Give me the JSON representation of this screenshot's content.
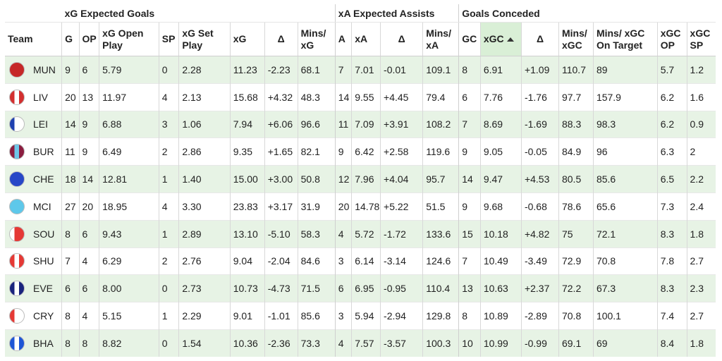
{
  "groups": {
    "xg": "xG Expected Goals",
    "xa": "xA Expected Assists",
    "gc": "Goals Conceded"
  },
  "columns": {
    "team": "Team",
    "g": "G",
    "op": "OP",
    "xg_open": "xG Open Play",
    "sp": "SP",
    "xg_set": "xG Set Play",
    "xg": "xG",
    "delta_g": "Δ",
    "mins_xg": "Mins/ xG",
    "a": "A",
    "xa": "xA",
    "delta_a": "Δ",
    "mins_xa": "Mins/ xA",
    "gc": "GC",
    "xgc": "xGC",
    "delta_gc": "Δ",
    "mins_xgc": "Mins/ xGC",
    "mins_xgc_ot": "Mins/ xGC On Target",
    "xgc_op": "xGC OP",
    "xgc_sp": "xGC SP"
  },
  "sort": {
    "column": "xgc",
    "direction": "ascending",
    "icon": "sort-up-icon"
  },
  "rows": [
    {
      "team": "MUN",
      "crest": "crest-mun-icon",
      "colors": [
        "#c62828",
        "#c62828",
        "#c62828"
      ],
      "g": "9",
      "op": "6",
      "xg_open": "5.79",
      "sp": "0",
      "xg_set": "2.28",
      "xg": "11.23",
      "delta_g": "-2.23",
      "mins_xg": "68.1",
      "a": "7",
      "xa": "7.01",
      "delta_a": "-0.01",
      "mins_xa": "109.1",
      "gc": "8",
      "xgc": "6.91",
      "delta_gc": "+1.09",
      "mins_xgc": "110.7",
      "mins_xgc_ot": "89",
      "xgc_op": "5.7",
      "xgc_sp": "1.2"
    },
    {
      "team": "LIV",
      "crest": "crest-liv-icon",
      "colors": [
        "#d32f2f",
        "#ffffff",
        "#d32f2f"
      ],
      "g": "20",
      "op": "13",
      "xg_open": "11.97",
      "sp": "4",
      "xg_set": "2.13",
      "xg": "15.68",
      "delta_g": "+4.32",
      "mins_xg": "48.3",
      "a": "14",
      "xa": "9.55",
      "delta_a": "+4.45",
      "mins_xa": "79.4",
      "gc": "6",
      "xgc": "7.76",
      "delta_gc": "-1.76",
      "mins_xgc": "97.7",
      "mins_xgc_ot": "157.9",
      "xgc_op": "6.2",
      "xgc_sp": "1.6"
    },
    {
      "team": "LEI",
      "crest": "crest-lei-icon",
      "colors": [
        "#1e40af",
        "#ffffff",
        "#ffffff"
      ],
      "g": "14",
      "op": "9",
      "xg_open": "6.88",
      "sp": "3",
      "xg_set": "1.06",
      "xg": "7.94",
      "delta_g": "+6.06",
      "mins_xg": "96.6",
      "a": "11",
      "xa": "7.09",
      "delta_a": "+3.91",
      "mins_xa": "108.2",
      "gc": "7",
      "xgc": "8.69",
      "delta_gc": "-1.69",
      "mins_xgc": "88.3",
      "mins_xgc_ot": "98.3",
      "xgc_op": "6.2",
      "xgc_sp": "0.9"
    },
    {
      "team": "BUR",
      "crest": "crest-bur-icon",
      "colors": [
        "#8b1d3f",
        "#6ec6e8",
        "#8b1d3f"
      ],
      "g": "11",
      "op": "9",
      "xg_open": "6.49",
      "sp": "2",
      "xg_set": "2.86",
      "xg": "9.35",
      "delta_g": "+1.65",
      "mins_xg": "82.1",
      "a": "9",
      "xa": "6.42",
      "delta_a": "+2.58",
      "mins_xa": "119.6",
      "gc": "9",
      "xgc": "9.05",
      "delta_gc": "-0.05",
      "mins_xgc": "84.9",
      "mins_xgc_ot": "96",
      "xgc_op": "6.3",
      "xgc_sp": "2"
    },
    {
      "team": "CHE",
      "crest": "crest-che-icon",
      "colors": [
        "#2747c7",
        "#2747c7",
        "#2747c7"
      ],
      "g": "18",
      "op": "14",
      "xg_open": "12.81",
      "sp": "1",
      "xg_set": "1.40",
      "xg": "15.00",
      "delta_g": "+3.00",
      "mins_xg": "50.8",
      "a": "12",
      "xa": "7.96",
      "delta_a": "+4.04",
      "mins_xa": "95.7",
      "gc": "14",
      "xgc": "9.47",
      "delta_gc": "+4.53",
      "mins_xgc": "80.5",
      "mins_xgc_ot": "85.6",
      "xgc_op": "6.5",
      "xgc_sp": "2.2"
    },
    {
      "team": "MCI",
      "crest": "crest-mci-icon",
      "colors": [
        "#5ec8ea",
        "#5ec8ea",
        "#5ec8ea"
      ],
      "g": "27",
      "op": "20",
      "xg_open": "18.95",
      "sp": "4",
      "xg_set": "3.30",
      "xg": "23.83",
      "delta_g": "+3.17",
      "mins_xg": "31.9",
      "a": "20",
      "xa": "14.78",
      "delta_a": "+5.22",
      "mins_xa": "51.5",
      "gc": "9",
      "xgc": "9.68",
      "delta_gc": "-0.68",
      "mins_xgc": "78.6",
      "mins_xgc_ot": "65.6",
      "xgc_op": "7.3",
      "xgc_sp": "2.4"
    },
    {
      "team": "SOU",
      "crest": "crest-sou-icon",
      "colors": [
        "#ffffff",
        "#e53935",
        "#e53935"
      ],
      "g": "8",
      "op": "6",
      "xg_open": "9.43",
      "sp": "1",
      "xg_set": "2.89",
      "xg": "13.10",
      "delta_g": "-5.10",
      "mins_xg": "58.3",
      "a": "4",
      "xa": "5.72",
      "delta_a": "-1.72",
      "mins_xa": "133.6",
      "gc": "15",
      "xgc": "10.18",
      "delta_gc": "+4.82",
      "mins_xgc": "75",
      "mins_xgc_ot": "72.1",
      "xgc_op": "8.3",
      "xgc_sp": "1.8"
    },
    {
      "team": "SHU",
      "crest": "crest-shu-icon",
      "colors": [
        "#e53935",
        "#ffffff",
        "#e53935"
      ],
      "g": "7",
      "op": "4",
      "xg_open": "6.29",
      "sp": "2",
      "xg_set": "2.76",
      "xg": "9.04",
      "delta_g": "-2.04",
      "mins_xg": "84.6",
      "a": "3",
      "xa": "6.14",
      "delta_a": "-3.14",
      "mins_xa": "124.6",
      "gc": "7",
      "xgc": "10.49",
      "delta_gc": "-3.49",
      "mins_xgc": "72.9",
      "mins_xgc_ot": "70.8",
      "xgc_op": "7.8",
      "xgc_sp": "2.7"
    },
    {
      "team": "EVE",
      "crest": "crest-eve-icon",
      "colors": [
        "#1a237e",
        "#ffffff",
        "#1a237e"
      ],
      "g": "6",
      "op": "6",
      "xg_open": "8.00",
      "sp": "0",
      "xg_set": "2.73",
      "xg": "10.73",
      "delta_g": "-4.73",
      "mins_xg": "71.5",
      "a": "6",
      "xa": "6.95",
      "delta_a": "-0.95",
      "mins_xa": "110.4",
      "gc": "13",
      "xgc": "10.63",
      "delta_gc": "+2.37",
      "mins_xgc": "72.2",
      "mins_xgc_ot": "67.3",
      "xgc_op": "8.3",
      "xgc_sp": "2.3"
    },
    {
      "team": "CRY",
      "crest": "crest-cry-icon",
      "colors": [
        "#e53935",
        "#ffffff",
        "#ffffff"
      ],
      "g": "8",
      "op": "4",
      "xg_open": "5.15",
      "sp": "1",
      "xg_set": "2.29",
      "xg": "9.01",
      "delta_g": "-1.01",
      "mins_xg": "85.6",
      "a": "3",
      "xa": "5.94",
      "delta_a": "-2.94",
      "mins_xa": "129.8",
      "gc": "8",
      "xgc": "10.89",
      "delta_gc": "-2.89",
      "mins_xgc": "70.8",
      "mins_xgc_ot": "100.1",
      "xgc_op": "7.4",
      "xgc_sp": "2.7"
    },
    {
      "team": "BHA",
      "crest": "crest-bha-icon",
      "colors": [
        "#1e56d6",
        "#ffffff",
        "#1e56d6"
      ],
      "g": "8",
      "op": "8",
      "xg_open": "8.82",
      "sp": "0",
      "xg_set": "1.54",
      "xg": "10.36",
      "delta_g": "-2.36",
      "mins_xg": "73.3",
      "a": "4",
      "xa": "7.57",
      "delta_a": "-3.57",
      "mins_xa": "100.3",
      "gc": "10",
      "xgc": "10.99",
      "delta_gc": "-0.99",
      "mins_xgc": "69.1",
      "mins_xgc_ot": "69",
      "xgc_op": "8.4",
      "xgc_sp": "1.8"
    }
  ]
}
